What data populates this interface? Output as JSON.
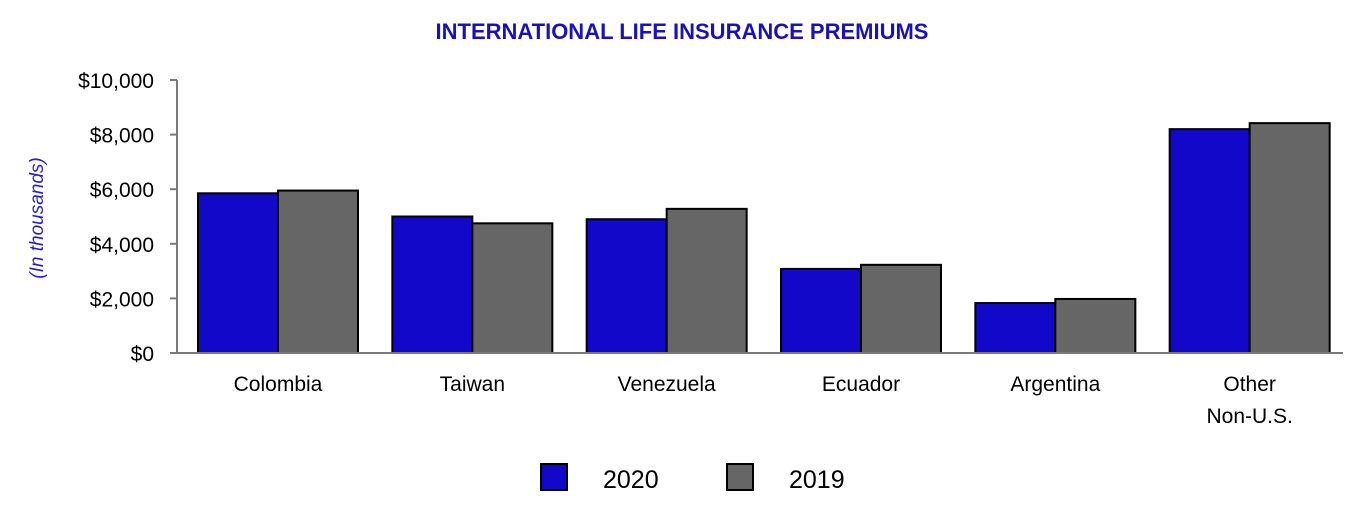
{
  "chart_data": {
    "type": "bar",
    "title": "INTERNATIONAL LIFE INSURANCE PREMIUMS",
    "xlabel": "",
    "ylabel": "(In thousands)",
    "ylim": [
      0,
      10000
    ],
    "grid": false,
    "legend_position": "bottom-center",
    "categories": [
      [
        "Colombia"
      ],
      [
        "Taiwan"
      ],
      [
        "Venezuela"
      ],
      [
        "Ecuador"
      ],
      [
        "Argentina"
      ],
      [
        "Other",
        "Non-U.S."
      ]
    ],
    "y_ticks": [
      {
        "value": 0,
        "label": "$0"
      },
      {
        "value": 2000,
        "label": "$2,000"
      },
      {
        "value": 4000,
        "label": "$4,000"
      },
      {
        "value": 6000,
        "label": "$6,000"
      },
      {
        "value": 8000,
        "label": "$8,000"
      },
      {
        "value": 10000,
        "label": "$10,000"
      }
    ],
    "series": [
      {
        "name": "2020",
        "color": "#1208c9",
        "values": [
          5850,
          5000,
          4900,
          3080,
          1830,
          8200
        ]
      },
      {
        "name": "2019",
        "color": "#666666",
        "values": [
          5950,
          4750,
          5280,
          3230,
          1980,
          8420
        ]
      }
    ]
  },
  "colors": {
    "title": "#1a12b8",
    "ylabel": "#2a1fc4",
    "axis": "#7a7a7a",
    "bar_stroke": "#000000"
  }
}
